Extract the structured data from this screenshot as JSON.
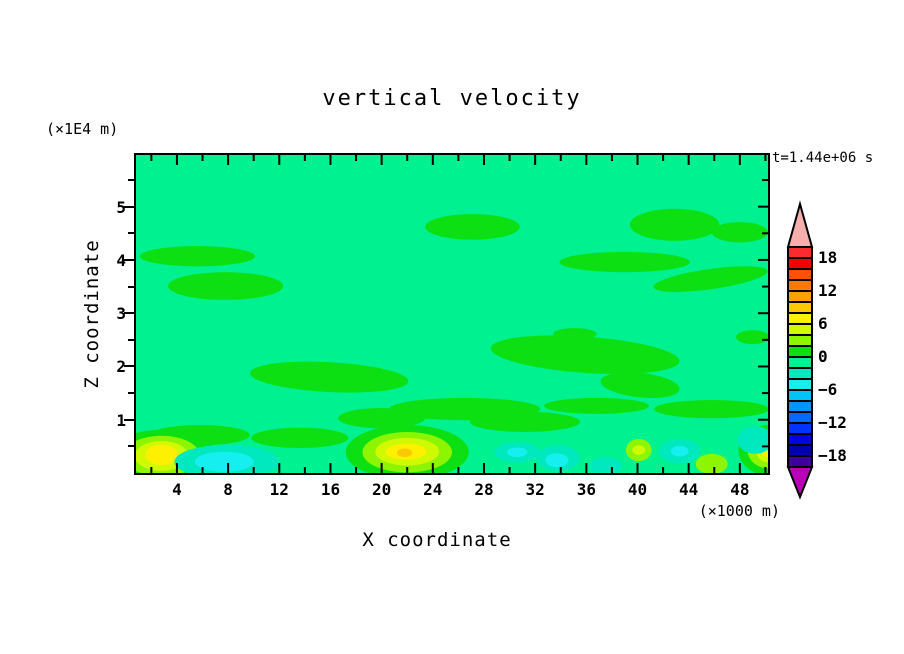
{
  "title": "vertical velocity",
  "labels": {
    "y_units": "(×1E4 m)",
    "x_units": "(×1000 m)",
    "timestamp": "t=1.44e+06 s",
    "xlabel": "X coordinate",
    "ylabel": "Z coordinate"
  },
  "chart_data": {
    "type": "filled-contour",
    "title": "vertical velocity",
    "xlabel": "X coordinate",
    "ylabel": "Z coordinate",
    "x_units": "×1000 m",
    "z_units": "×1E4 m",
    "time_label": "t=1.44e+06 s",
    "x_range": [
      0.8,
      50.2
    ],
    "z_range": [
      0,
      5.97
    ],
    "contour_interval": 2,
    "grid": false,
    "x_ticks": {
      "major": [
        4,
        8,
        12,
        16,
        20,
        24,
        28,
        32,
        36,
        40,
        44,
        48
      ],
      "minor": [
        2,
        6,
        10,
        14,
        18,
        22,
        26,
        30,
        34,
        38,
        42,
        46,
        50
      ]
    },
    "z_ticks": {
      "major": [
        1,
        2,
        3,
        4,
        5
      ],
      "minor": [
        0.5,
        1.5,
        2.5,
        3.5,
        4.5,
        5.5
      ]
    },
    "background_band": "-2..0",
    "colorbar": {
      "position": "right",
      "labels": [
        {
          "v": 18,
          "t": "18"
        },
        {
          "v": 12,
          "t": "12"
        },
        {
          "v": 6,
          "t": "6"
        },
        {
          "v": 0,
          "t": "0"
        },
        {
          "v": -6,
          "t": "−6"
        },
        {
          "v": -12,
          "t": "−12"
        },
        {
          "v": -18,
          "t": "−18"
        }
      ],
      "over_color": "#F7AFAE",
      "under_color": "#BB01B7",
      "segments": [
        {
          "band": "18..20",
          "color": "#FB2B30"
        },
        {
          "band": "16..18",
          "color": "#F50000"
        },
        {
          "band": "14..16",
          "color": "#FA5300"
        },
        {
          "band": "12..14",
          "color": "#FB7A00"
        },
        {
          "band": "10..12",
          "color": "#FCA101"
        },
        {
          "band": "8..10",
          "color": "#FDC801"
        },
        {
          "band": "6..8",
          "color": "#FEF001"
        },
        {
          "band": "4..6",
          "color": "#D0FA01"
        },
        {
          "band": "2..4",
          "color": "#8EF501"
        },
        {
          "band": "0..2",
          "color": "#0CE013"
        },
        {
          "band": "-2..0",
          "color": "#00F18F"
        },
        {
          "band": "-4..-2",
          "color": "#00E9BE"
        },
        {
          "band": "-6..-4",
          "color": "#16EFEF"
        },
        {
          "band": "-8..-6",
          "color": "#00C3F7"
        },
        {
          "band": "-10..-8",
          "color": "#0195FB"
        },
        {
          "band": "-12..-10",
          "color": "#0169FB"
        },
        {
          "band": "-14..-12",
          "color": "#0134FB"
        },
        {
          "band": "-16..-14",
          "color": "#0201E0"
        },
        {
          "band": "-18..-16",
          "color": "#0101AB"
        },
        {
          "band": "-20..-18",
          "color": "#40019B"
        }
      ]
    },
    "features": [
      {
        "x": 5.6,
        "z": 4.07,
        "rx": 4.5,
        "rz": 0.19,
        "rot": 0,
        "band": "0..2"
      },
      {
        "x": 7.8,
        "z": 3.51,
        "rx": 4.5,
        "rz": 0.26,
        "rot": 0,
        "band": "0..2"
      },
      {
        "x": 15.9,
        "z": 1.8,
        "rx": 6.2,
        "rz": 0.28,
        "rot": 3,
        "band": "0..2"
      },
      {
        "x": 27.1,
        "z": 4.62,
        "rx": 3.7,
        "rz": 0.24,
        "rot": 0,
        "band": "0..2"
      },
      {
        "x": 35.1,
        "z": 2.61,
        "rx": 1.7,
        "rz": 0.11,
        "rot": 0,
        "band": "0..2"
      },
      {
        "x": 35.9,
        "z": 2.22,
        "rx": 7.4,
        "rz": 0.34,
        "rot": 4,
        "band": "0..2"
      },
      {
        "x": 40.2,
        "z": 1.65,
        "rx": 3.1,
        "rz": 0.23,
        "rot": 6,
        "band": "0..2"
      },
      {
        "x": 42.9,
        "z": 4.66,
        "rx": 3.5,
        "rz": 0.3,
        "rot": 0,
        "band": "0..2"
      },
      {
        "x": 48,
        "z": 4.52,
        "rx": 2.2,
        "rz": 0.19,
        "rot": 0,
        "band": "0..2"
      },
      {
        "x": 39,
        "z": 3.96,
        "rx": 5.1,
        "rz": 0.19,
        "rot": 0,
        "band": "0..2"
      },
      {
        "x": 45.7,
        "z": 3.64,
        "rx": 4.5,
        "rz": 0.19,
        "rot": -8,
        "band": "0..2"
      },
      {
        "x": 49,
        "z": 2.55,
        "rx": 1.3,
        "rz": 0.13,
        "rot": 0,
        "band": "0..2"
      },
      {
        "x": 26.5,
        "z": 1.2,
        "rx": 5.9,
        "rz": 0.21,
        "rot": 0,
        "band": "0..2"
      },
      {
        "x": 5.8,
        "z": 0.71,
        "rx": 3.9,
        "rz": 0.19,
        "rot": 0,
        "band": "0..2"
      },
      {
        "x": 13.6,
        "z": 0.66,
        "rx": 3.8,
        "rz": 0.19,
        "rot": 0,
        "band": "0..2"
      },
      {
        "x": 20,
        "z": 1.03,
        "rx": 3.4,
        "rz": 0.19,
        "rot": 0,
        "band": "0..2"
      },
      {
        "x": 31.2,
        "z": 0.96,
        "rx": 4.3,
        "rz": 0.19,
        "rot": 0,
        "band": "0..2"
      },
      {
        "x": 36.8,
        "z": 1.26,
        "rx": 4.1,
        "rz": 0.15,
        "rot": 0,
        "band": "0..2"
      },
      {
        "x": 45.8,
        "z": 1.2,
        "rx": 4.5,
        "rz": 0.17,
        "rot": 0,
        "band": "0..2"
      },
      {
        "x": 2.8,
        "z": 0.32,
        "rx": 4.3,
        "rz": 0.49,
        "rot": 0,
        "band": "0..2"
      },
      {
        "x": 2.8,
        "z": 0.32,
        "rx": 3.0,
        "rz": 0.38,
        "rot": 0,
        "band": "2..4"
      },
      {
        "x": 2.8,
        "z": 0.32,
        "rx": 2.1,
        "rz": 0.28,
        "rot": 0,
        "band": "4..6"
      },
      {
        "x": 2.8,
        "z": 0.34,
        "rx": 1.3,
        "rz": 0.19,
        "rot": 0,
        "band": "6..8"
      },
      {
        "x": 22,
        "z": 0.39,
        "rx": 4.8,
        "rz": 0.51,
        "rot": 0,
        "band": "0..2"
      },
      {
        "x": 22,
        "z": 0.39,
        "rx": 3.5,
        "rz": 0.38,
        "rot": 0,
        "band": "2..4"
      },
      {
        "x": 22,
        "z": 0.4,
        "rx": 2.5,
        "rz": 0.26,
        "rot": 0,
        "band": "4..6"
      },
      {
        "x": 21.9,
        "z": 0.4,
        "rx": 1.6,
        "rz": 0.15,
        "rot": 0,
        "band": "6..8"
      },
      {
        "x": 21.8,
        "z": 0.38,
        "rx": 0.6,
        "rz": 0.08,
        "rot": 0,
        "band": "8..10"
      },
      {
        "x": 50.2,
        "z": 0.43,
        "rx": 2.3,
        "rz": 0.47,
        "rot": 0,
        "band": "0..2"
      },
      {
        "x": 50.2,
        "z": 0.43,
        "rx": 1.6,
        "rz": 0.34,
        "rot": 0,
        "band": "2..4"
      },
      {
        "x": 50.2,
        "z": 0.43,
        "rx": 0.95,
        "rz": 0.23,
        "rot": 0,
        "band": "4..6"
      },
      {
        "x": 50.2,
        "z": 0.43,
        "rx": 0.5,
        "rz": 0.13,
        "rot": 0,
        "band": "6..8"
      },
      {
        "x": 40.1,
        "z": 0.43,
        "rx": 1.0,
        "rz": 0.21,
        "rot": 0,
        "band": "2..4"
      },
      {
        "x": 40.1,
        "z": 0.43,
        "rx": 0.5,
        "rz": 0.09,
        "rot": 0,
        "band": "4..6"
      },
      {
        "x": 45.8,
        "z": 0.17,
        "rx": 1.25,
        "rz": 0.19,
        "rot": 0,
        "band": "2..4"
      },
      {
        "x": 7.9,
        "z": 0.21,
        "rx": 4.1,
        "rz": 0.32,
        "rot": 0,
        "band": "-4..-2"
      },
      {
        "x": 7.7,
        "z": 0.21,
        "rx": 2.3,
        "rz": 0.19,
        "rot": 0,
        "band": "-6..-4"
      },
      {
        "x": 30.6,
        "z": 0.39,
        "rx": 1.8,
        "rz": 0.19,
        "rot": 0,
        "band": "-4..-2"
      },
      {
        "x": 30.6,
        "z": 0.39,
        "rx": 0.8,
        "rz": 0.09,
        "rot": 0,
        "band": "-6..-4"
      },
      {
        "x": 33.8,
        "z": 0.28,
        "rx": 1.7,
        "rz": 0.24,
        "rot": 0,
        "band": "-4..-2"
      },
      {
        "x": 33.7,
        "z": 0.24,
        "rx": 0.9,
        "rz": 0.13,
        "rot": 0,
        "band": "-6..-4"
      },
      {
        "x": 37.5,
        "z": 0.13,
        "rx": 1.3,
        "rz": 0.17,
        "rot": 0,
        "band": "-4..-2"
      },
      {
        "x": 43.3,
        "z": 0.41,
        "rx": 1.6,
        "rz": 0.23,
        "rot": 0,
        "band": "-4..-2"
      },
      {
        "x": 43.3,
        "z": 0.41,
        "rx": 0.7,
        "rz": 0.1,
        "rot": 0,
        "band": "-6..-4"
      },
      {
        "x": 49.2,
        "z": 0.62,
        "rx": 1.4,
        "rz": 0.26,
        "rot": 0,
        "band": "-4..-2"
      }
    ]
  }
}
